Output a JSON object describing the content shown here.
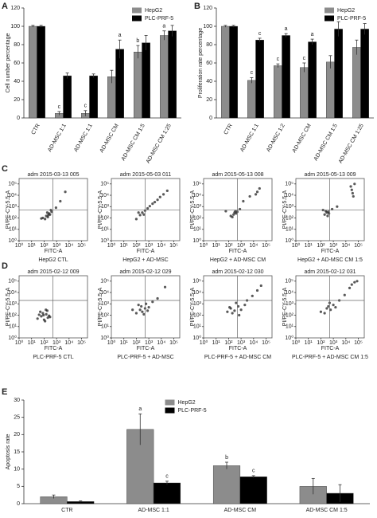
{
  "chart_data": [
    {
      "type": "bar",
      "panel": "A",
      "ylabel": "Cell number percentage",
      "legend": "upper right",
      "ylim": [
        0,
        120
      ],
      "yticks": [
        0,
        20,
        40,
        60,
        80,
        100,
        120
      ],
      "categories": [
        "CTR",
        "AD-MSC 1:1",
        "AD-MSC 1:1",
        "AD-MSC CM",
        "AD-MSC CM 1:5",
        "AD-MSC CM 1:25"
      ],
      "series": [
        {
          "name": "HepG2",
          "color": "#8c8c8c",
          "values": [
            100,
            5,
            5,
            45,
            72,
            90
          ],
          "errors": [
            1,
            2,
            3,
            7,
            7,
            5
          ],
          "labels": [
            null,
            "c",
            "c",
            null,
            "b",
            "a"
          ]
        },
        {
          "name": "PLC-PRF-5",
          "color": "#000000",
          "values": [
            100,
            46,
            46,
            75,
            82,
            95
          ],
          "errors": [
            1,
            3,
            2,
            10,
            8,
            6
          ],
          "labels": [
            null,
            null,
            null,
            "a",
            null,
            null
          ]
        }
      ]
    },
    {
      "type": "bar",
      "panel": "B",
      "ylabel": "Proliferation rate percentage",
      "legend": "upper right",
      "ylim": [
        0,
        120
      ],
      "yticks": [
        0,
        20,
        40,
        60,
        80,
        100,
        120
      ],
      "categories": [
        "CTR",
        "AD-MSC 1:1",
        "AD-MSC 1:2",
        "AD-MSC CM",
        "AD-MSC CM 1:5",
        "AD-MSC CM 1:25"
      ],
      "series": [
        {
          "name": "HepG2",
          "color": "#8c8c8c",
          "values": [
            100,
            41,
            57,
            55,
            61,
            77
          ],
          "errors": [
            1,
            3,
            2,
            5,
            7,
            8
          ],
          "labels": [
            null,
            "c",
            "c",
            "c",
            null,
            null
          ]
        },
        {
          "name": "PLC-PRF-5",
          "color": "#000000",
          "values": [
            100,
            85,
            90,
            83,
            97,
            97
          ],
          "errors": [
            1,
            2,
            2,
            3,
            8,
            6
          ],
          "labels": [
            null,
            "c",
            "a",
            "a",
            null,
            null
          ]
        }
      ]
    },
    {
      "type": "scatter",
      "panel": "C",
      "title": "adm 2015-03-13 005",
      "caption": "HepG2 CTL",
      "xlabel": "FITC-A",
      "ylabel": "PI/PE-CY-5.5-A",
      "xscale": "log",
      "yscale": "log",
      "xlim": [
        1,
        300000
      ],
      "ylim": [
        1,
        300000
      ],
      "xticks": [
        {
          "value": 1,
          "label": "10⁰"
        },
        {
          "value": 10,
          "label": "10¹"
        },
        {
          "value": 100,
          "label": "10²"
        },
        {
          "value": 1000,
          "label": "10³"
        },
        {
          "value": 10000,
          "label": "10⁴"
        },
        {
          "value": 100000,
          "label": "10⁵"
        }
      ],
      "yticks": [
        {
          "value": 1,
          "label": "10⁰"
        },
        {
          "value": 10,
          "label": "10¹"
        },
        {
          "value": 100,
          "label": "10²"
        },
        {
          "value": 1000,
          "label": "10³"
        },
        {
          "value": 10000,
          "label": "10⁴"
        },
        {
          "value": 100000,
          "label": "10⁵"
        }
      ],
      "quadrant_gate": {
        "x": 500,
        "y": 500
      },
      "color": "#222222",
      "x": [
        80,
        150,
        200,
        250,
        300,
        120,
        180,
        400,
        60,
        220,
        350,
        900,
        2000,
        5000
      ],
      "y": [
        100,
        150,
        120,
        250,
        200,
        80,
        300,
        350,
        90,
        180,
        500,
        800,
        3000,
        20000
      ]
    },
    {
      "type": "scatter",
      "title": "adm 2015-05-03 011",
      "caption": "HepG2 + AD-MSC",
      "xlabel": "FITC-A",
      "ylabel": "PI/PE-CY-5.5-A",
      "xscale": "log",
      "yscale": "log",
      "xlim": [
        1,
        300000
      ],
      "ylim": [
        1,
        300000
      ],
      "xticks": [
        {
          "value": 1,
          "label": "10⁰"
        },
        {
          "value": 10,
          "label": "10¹"
        },
        {
          "value": 100,
          "label": "10²"
        },
        {
          "value": 1000,
          "label": "10³"
        },
        {
          "value": 10000,
          "label": "10⁴"
        },
        {
          "value": 100000,
          "label": "10⁵"
        }
      ],
      "yticks": [
        {
          "value": 1,
          "label": "10⁰"
        },
        {
          "value": 10,
          "label": "10¹"
        },
        {
          "value": 100,
          "label": "10²"
        },
        {
          "value": 1000,
          "label": "10³"
        },
        {
          "value": 10000,
          "label": "10⁴"
        },
        {
          "value": 100000,
          "label": "10⁵"
        }
      ],
      "quadrant_gate": {
        "x": 500,
        "y": 500
      },
      "color": "#222222",
      "x": [
        100,
        200,
        300,
        500,
        800,
        1200,
        2000,
        3000,
        5000,
        8000,
        15000,
        30000,
        400,
        150
      ],
      "y": [
        80,
        180,
        300,
        450,
        700,
        1100,
        1800,
        2500,
        4000,
        7000,
        12000,
        25000,
        200,
        300
      ]
    },
    {
      "type": "scatter",
      "title": "adm 2015-05-13 008",
      "caption": "HepG2 + AD-MSC CM",
      "xlabel": "FITC-A",
      "ylabel": "PI/PE-CY-5.5-A",
      "xscale": "log",
      "yscale": "log",
      "xlim": [
        1,
        300000
      ],
      "ylim": [
        1,
        300000
      ],
      "xticks": [
        {
          "value": 1,
          "label": "10⁰"
        },
        {
          "value": 10,
          "label": "10¹"
        },
        {
          "value": 100,
          "label": "10²"
        },
        {
          "value": 1000,
          "label": "10³"
        },
        {
          "value": 10000,
          "label": "10⁴"
        },
        {
          "value": 100000,
          "label": "10⁵"
        }
      ],
      "yticks": [
        {
          "value": 1,
          "label": "10⁰"
        },
        {
          "value": 10,
          "label": "10¹"
        },
        {
          "value": 100,
          "label": "10²"
        },
        {
          "value": 1000,
          "label": "10³"
        },
        {
          "value": 10000,
          "label": "10⁴"
        },
        {
          "value": 100000,
          "label": "10⁵"
        }
      ],
      "quadrant_gate": {
        "x": 500,
        "y": 500
      },
      "color": "#222222",
      "x": [
        150,
        250,
        300,
        400,
        200,
        350,
        500,
        800,
        20000,
        30000,
        15000,
        1500,
        60,
        5000
      ],
      "y": [
        150,
        200,
        300,
        250,
        120,
        400,
        350,
        600,
        20000,
        40000,
        12000,
        3000,
        400,
        8000
      ]
    },
    {
      "type": "scatter",
      "title": "adm 2015-05-13 009",
      "caption": "HepG2 + AD-MSC CM 1:5",
      "xlabel": "FITC-A",
      "ylabel": "PI/PE-CY-5.5-A",
      "xscale": "log",
      "yscale": "log",
      "xlim": [
        1,
        300000
      ],
      "ylim": [
        1,
        300000
      ],
      "xticks": [
        {
          "value": 1,
          "label": "10⁰"
        },
        {
          "value": 10,
          "label": "10¹"
        },
        {
          "value": 100,
          "label": "10²"
        },
        {
          "value": 1000,
          "label": "10³"
        },
        {
          "value": 10000,
          "label": "10⁴"
        },
        {
          "value": 100000,
          "label": "10⁵"
        }
      ],
      "yticks": [
        {
          "value": 1,
          "label": "10⁰"
        },
        {
          "value": 10,
          "label": "10¹"
        },
        {
          "value": 100,
          "label": "10²"
        },
        {
          "value": 1000,
          "label": "10³"
        },
        {
          "value": 10000,
          "label": "10⁴"
        },
        {
          "value": 100000,
          "label": "10⁵"
        }
      ],
      "quadrant_gate": {
        "x": 500,
        "y": 500
      },
      "color": "#222222",
      "x": [
        200,
        300,
        350,
        250,
        400,
        450,
        30000,
        40000,
        25000,
        35000,
        2000,
        800,
        150,
        50000
      ],
      "y": [
        200,
        300,
        150,
        400,
        350,
        250,
        30000,
        8000,
        60000,
        15000,
        1000,
        600,
        500,
        100000
      ]
    },
    {
      "type": "scatter",
      "panel": "D",
      "title": "adm 2015-02-12 009",
      "caption": "PLC-PRF-5 CTL",
      "xlabel": "FITC-A",
      "ylabel": "PI/PE-CY-5.5-A",
      "xscale": "log",
      "yscale": "log",
      "xlim": [
        1,
        300000
      ],
      "ylim": [
        1,
        300000
      ],
      "xticks": [
        {
          "value": 1,
          "label": "10⁰"
        },
        {
          "value": 10,
          "label": "10¹"
        },
        {
          "value": 100,
          "label": "10²"
        },
        {
          "value": 1000,
          "label": "10³"
        },
        {
          "value": 10000,
          "label": "10⁴"
        },
        {
          "value": 100000,
          "label": "10⁵"
        }
      ],
      "yticks": [
        {
          "value": 1,
          "label": "10⁰"
        },
        {
          "value": 10,
          "label": "10¹"
        },
        {
          "value": 100,
          "label": "10²"
        },
        {
          "value": 1000,
          "label": "10³"
        },
        {
          "value": 10000,
          "label": "10⁴"
        },
        {
          "value": 100000,
          "label": "10⁵"
        }
      ],
      "quadrant_gate": {
        "x": 500,
        "y": 2000
      },
      "color": "#222222",
      "x": [
        30,
        60,
        100,
        150,
        200,
        80,
        120,
        250,
        50,
        180,
        90,
        300,
        40,
        140
      ],
      "y": [
        50,
        80,
        40,
        120,
        60,
        150,
        30,
        90,
        200,
        250,
        100,
        70,
        110,
        300
      ]
    },
    {
      "type": "scatter",
      "title": "adm 2015-02-12 029",
      "caption": "PLC-PRF-5 + AD-MSC",
      "xlabel": "FITC-A",
      "ylabel": "PI/PE-CY-5.5-A",
      "xscale": "log",
      "yscale": "log",
      "xlim": [
        1,
        300000
      ],
      "ylim": [
        1,
        300000
      ],
      "xticks": [
        {
          "value": 1,
          "label": "10⁰"
        },
        {
          "value": 10,
          "label": "10¹"
        },
        {
          "value": 100,
          "label": "10²"
        },
        {
          "value": 1000,
          "label": "10³"
        },
        {
          "value": 10000,
          "label": "10⁴"
        },
        {
          "value": 100000,
          "label": "10⁵"
        }
      ],
      "yticks": [
        {
          "value": 1,
          "label": "10⁰"
        },
        {
          "value": 10,
          "label": "10¹"
        },
        {
          "value": 100,
          "label": "10²"
        },
        {
          "value": 1000,
          "label": "10³"
        },
        {
          "value": 10000,
          "label": "10⁴"
        },
        {
          "value": 100000,
          "label": "10⁵"
        }
      ],
      "quadrant_gate": {
        "x": 500,
        "y": 2000
      },
      "color": "#222222",
      "x": [
        100,
        200,
        300,
        500,
        800,
        250,
        150,
        400,
        1000,
        2000,
        5000,
        20000,
        50,
        600
      ],
      "y": [
        150,
        300,
        200,
        400,
        250,
        600,
        800,
        120,
        500,
        1500,
        3000,
        30000,
        300,
        1000
      ]
    },
    {
      "type": "scatter",
      "title": "adm 2015-02-12 030",
      "caption": "PLC-PRF-5 + AD-MSC CM",
      "xlabel": "FITC-A",
      "ylabel": "PI/PE-CY-5.5-A",
      "xscale": "log",
      "yscale": "log",
      "xlim": [
        1,
        300000
      ],
      "ylim": [
        1,
        300000
      ],
      "xticks": [
        {
          "value": 1,
          "label": "10⁰"
        },
        {
          "value": 10,
          "label": "10¹"
        },
        {
          "value": 100,
          "label": "10²"
        },
        {
          "value": 1000,
          "label": "10³"
        },
        {
          "value": 10000,
          "label": "10⁴"
        },
        {
          "value": 100000,
          "label": "10⁵"
        }
      ],
      "yticks": [
        {
          "value": 1,
          "label": "10⁰"
        },
        {
          "value": 10,
          "label": "10¹"
        },
        {
          "value": 100,
          "label": "10²"
        },
        {
          "value": 1000,
          "label": "10³"
        },
        {
          "value": 10000,
          "label": "10⁴"
        },
        {
          "value": 100000,
          "label": "10⁵"
        }
      ],
      "quadrant_gate": {
        "x": 500,
        "y": 2000
      },
      "color": "#222222",
      "x": [
        80,
        150,
        300,
        600,
        1000,
        2000,
        400,
        200,
        3000,
        8000,
        20000,
        40000,
        120,
        700
      ],
      "y": [
        200,
        400,
        250,
        600,
        300,
        800,
        1200,
        150,
        2000,
        5000,
        15000,
        40000,
        500,
        100
      ]
    },
    {
      "type": "scatter",
      "title": "adm 2015-02-12 031",
      "caption": "PLC-PRF-5 + AD-MSC CM 1:5",
      "xlabel": "FITC-A",
      "ylabel": "PI/PE-CY-5.5-A",
      "xscale": "log",
      "yscale": "log",
      "xlim": [
        1,
        300000
      ],
      "ylim": [
        1,
        300000
      ],
      "xticks": [
        {
          "value": 1,
          "label": "10⁰"
        },
        {
          "value": 10,
          "label": "10¹"
        },
        {
          "value": 100,
          "label": "10²"
        },
        {
          "value": 1000,
          "label": "10³"
        },
        {
          "value": 10000,
          "label": "10⁴"
        },
        {
          "value": 100000,
          "label": "10⁵"
        }
      ],
      "yticks": [
        {
          "value": 1,
          "label": "10⁰"
        },
        {
          "value": 10,
          "label": "10¹"
        },
        {
          "value": 100,
          "label": "10²"
        },
        {
          "value": 1000,
          "label": "10³"
        },
        {
          "value": 10000,
          "label": "10⁴"
        },
        {
          "value": 100000,
          "label": "10⁵"
        }
      ],
      "quadrant_gate": {
        "x": 500,
        "y": 2000
      },
      "color": "#222222",
      "x": [
        100,
        300,
        600,
        1000,
        3000,
        8000,
        20000,
        50000,
        200,
        500,
        1500,
        30000,
        80000,
        400
      ],
      "y": [
        200,
        400,
        300,
        800,
        2000,
        6000,
        25000,
        80000,
        150,
        1200,
        500,
        50000,
        100000,
        600
      ]
    },
    {
      "type": "bar",
      "panel": "E",
      "ylabel": "Apoptosis rate",
      "legend": "upper center",
      "ylim": [
        0,
        30
      ],
      "yticks": [
        0,
        5,
        10,
        15,
        20,
        25,
        30
      ],
      "categories": [
        "CTR",
        "AD-MSC 1:1",
        "AD-MSC CM",
        "AD-MSC CM 1:5"
      ],
      "series": [
        {
          "name": "HepG2",
          "color": "#8c8c8c",
          "values": [
            2,
            21.5,
            11,
            5
          ],
          "errors": [
            0.5,
            4.5,
            1,
            2.3
          ],
          "labels": [
            null,
            "a",
            "b",
            null
          ]
        },
        {
          "name": "PLC-PRF-5",
          "color": "#000000",
          "values": [
            0.6,
            6,
            7.8,
            3
          ],
          "errors": [
            0.2,
            0.5,
            0.3,
            2.5
          ],
          "labels": [
            null,
            "c",
            "c",
            null
          ]
        }
      ]
    }
  ]
}
